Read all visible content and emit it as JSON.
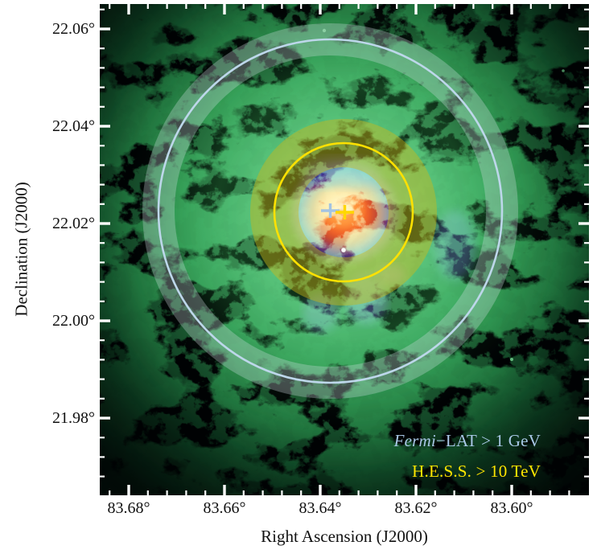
{
  "figure": {
    "xlabel": "Right Ascension (J2000)",
    "ylabel": "Declination (J2000)",
    "x_tick_labels": [
      "83.68°",
      "83.66°",
      "83.64°",
      "83.62°",
      "83.60°"
    ],
    "y_tick_labels": [
      "22.06°",
      "22.04°",
      "22.02°",
      "22.00°",
      "21.98°"
    ]
  },
  "legend": {
    "fermi_italic": "Fermi",
    "fermi_rest": "−LAT > 1 GeV",
    "fermi_color": "#a9c8e6",
    "hess": "H.E.S.S. > 10 TeV",
    "hess_color": "#ffe600"
  },
  "chart_data": {
    "type": "heatmap",
    "description": "Multi-wavelength image of the Crab Nebula (green optical filaments, orange-red pulsar wind nebula core with blue-purple rim) with gamma-ray extension measurements overlaid as circles with translucent uncertainty bands and position crosses.",
    "axes": {
      "x": {
        "label": "Right Ascension (J2000)",
        "unit": "deg",
        "range_left_to_right": [
          83.686,
          83.584
        ],
        "direction": "decreasing",
        "major_ticks": [
          83.68,
          83.66,
          83.64,
          83.62,
          83.6
        ],
        "minor_tick_step_deg": 0.004
      },
      "y": {
        "label": "Declination (J2000)",
        "unit": "deg",
        "range_bottom_to_top": [
          21.964,
          22.065
        ],
        "major_ticks": [
          22.06,
          22.04,
          22.02,
          22.0,
          21.98
        ],
        "minor_tick_step_deg": 0.004
      },
      "grid": false
    },
    "overlays": [
      {
        "name": "Fermi-LAT > 1 GeV extension",
        "shape": "circle with translucent uncertainty annulus and center cross",
        "center_ra_deg": 83.638,
        "center_dec_deg": 22.023,
        "radius_deg": 0.0357,
        "band_halfwidth_deg": 0.0034,
        "circle_color": "#bdd7ea",
        "band_color": "rgba(215,225,232,0.30)"
      },
      {
        "name": "H.E.S.S. > 10 TeV extension",
        "shape": "circle with translucent uncertainty annulus and center cross",
        "center_ra_deg": 83.635,
        "center_dec_deg": 22.022,
        "radius_deg": 0.0143,
        "band_halfwidth_deg": 0.005,
        "circle_color": "#ffe100",
        "band_color": "rgba(205,185,25,0.45)"
      }
    ],
    "legend_position": "lower right",
    "legend_entries": [
      "Fermi−LAT > 1 GeV",
      "H.E.S.S. > 10 TeV"
    ]
  }
}
